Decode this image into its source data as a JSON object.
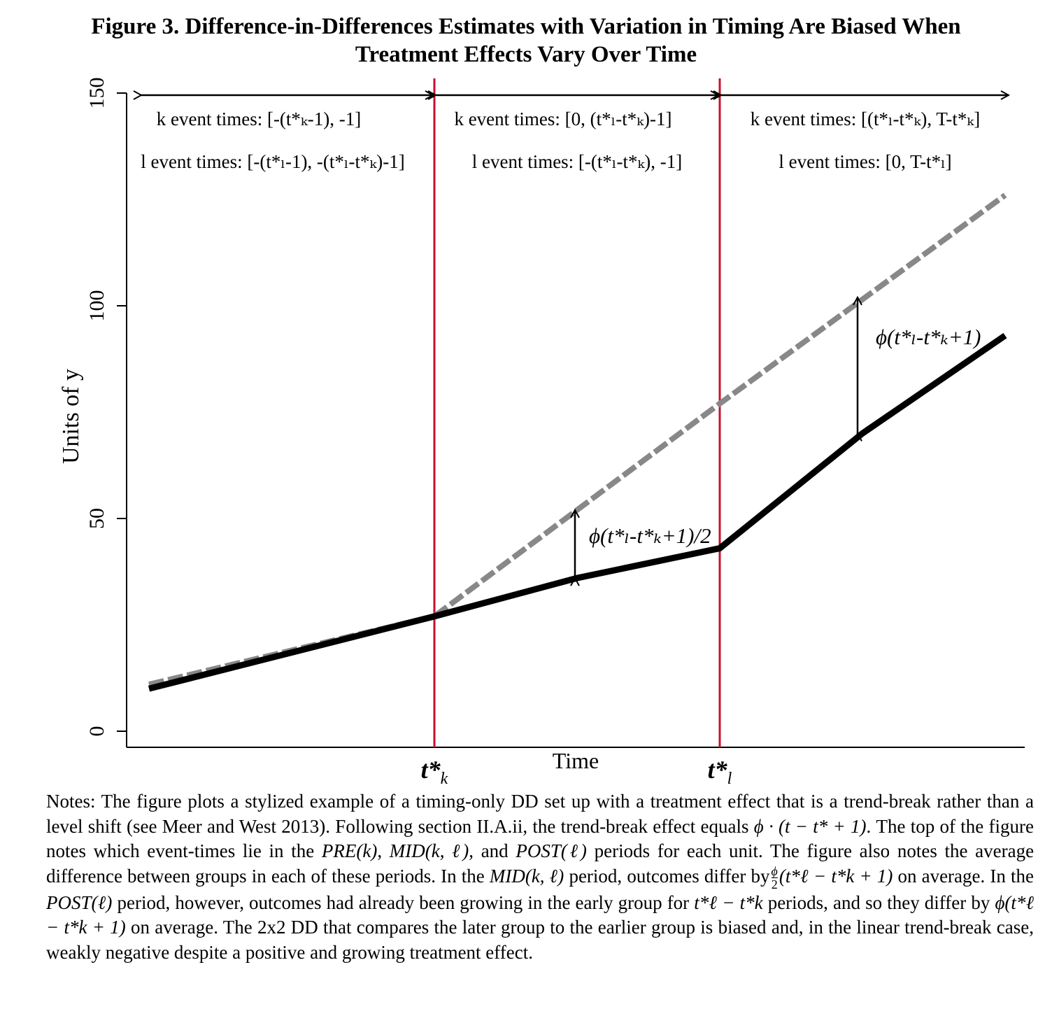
{
  "title_line1": "Figure 3. Difference-in-Differences Estimates with Variation in Timing Are Biased When",
  "title_line2": "Treatment Effects Vary Over Time",
  "chart_data": {
    "type": "line",
    "ylabel": "Units of y",
    "xlabel": "Time",
    "ylim": [
      0,
      150
    ],
    "xlim": [
      0,
      12
    ],
    "yticks": [
      0,
      50,
      100,
      150
    ],
    "grid": false,
    "legend": "none",
    "series": [
      {
        "x": [
          0,
          4,
          8,
          12
        ],
        "values": [
          11,
          27,
          77,
          126
        ],
        "color": "#888888",
        "style": "dashed"
      },
      {
        "x": [
          0,
          4,
          6,
          8,
          10,
          12
        ],
        "values": [
          10,
          27,
          36,
          43,
          70,
          93
        ],
        "color": "#000000",
        "style": "solid"
      }
    ],
    "vlines": [
      {
        "x": 4,
        "label_main": "t*",
        "label_sub": "k",
        "color": "#c8102e"
      },
      {
        "x": 8,
        "label_main": "t*",
        "label_sub": "l",
        "color": "#c8102e"
      }
    ],
    "gap_arrows": [
      {
        "x": 6,
        "y_low": 36,
        "y_high": 52,
        "label": "ϕ(t*ₗ-t*ₖ+1)/2"
      },
      {
        "x": 10,
        "y_low": 70,
        "y_high": 102,
        "label": "ϕ(t*ₗ-t*ₖ+1)"
      }
    ],
    "period_annotations": [
      {
        "k_text": "k event times: [-(t*ₖ-1), -1]",
        "l_text": "l event times: [-(t*ₗ-1), -(t*ₗ-t*ₖ)-1]"
      },
      {
        "k_text": "k event times: [0, (t*ₗ-t*ₖ)-1]",
        "l_text": "l event times: [-(t*ₗ-t*ₖ), -1]"
      },
      {
        "k_text": "k event times: [(t*ₗ-t*ₖ), T-t*ₖ]",
        "l_text": "l event times: [0, T-t*ₗ]"
      }
    ]
  },
  "notes": {
    "p1": "Notes: The figure plots a stylized example of a timing-only DD set up with a treatment effect that is a trend-break rather than a level shift (see Meer and West 2013). Following section II.A.ii, the trend-break effect equals",
    "m1": "ϕ · (t − t* + 1)",
    "p2": ". The top of the figure notes which event-times lie in the",
    "m2": "PRE(k)",
    "p3": ",",
    "m3": "MID(k, ℓ)",
    "p4": ", and",
    "m4": "POST(ℓ)",
    "p5": "periods for each unit. The figure also notes the average difference between groups in each of these periods. In the",
    "m5": "MID(k, ℓ)",
    "p6": "period, outcomes differ by",
    "frac_num": "ϕ",
    "frac_den": "2",
    "m6": "(t*ℓ − t*k + 1)",
    "p7": "on average. In the",
    "m7": "POST(ℓ)",
    "p8": "period, however, outcomes had already been growing in the early group for",
    "m8": "t*ℓ − t*k",
    "p9": "periods, and so they differ by",
    "m9": "ϕ(t*ℓ − t*k + 1)",
    "p10": "on average. The 2x2 DD that compares the later group to the earlier group is biased and, in the linear trend-break case, weakly negative despite a positive and growing treatment effect."
  }
}
